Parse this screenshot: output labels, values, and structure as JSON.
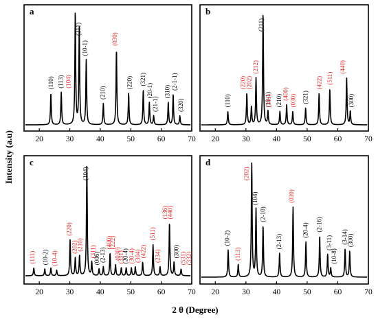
{
  "figure": {
    "ylabel": "Intensity (a.u)",
    "xlabel": "2 θ (Degree)",
    "label_colors": {
      "black": "#000000",
      "red": "#e32624"
    }
  },
  "chart_data": [
    {
      "type": "line",
      "panel": "a",
      "xlim": [
        15,
        70
      ],
      "xticks": [
        20,
        30,
        40,
        50,
        60,
        70
      ],
      "peaks": [
        [
          23.8,
          0.28
        ],
        [
          27.2,
          0.29
        ],
        [
          31.8,
          1.0
        ],
        [
          33.1,
          0.86
        ],
        [
          35.4,
          0.58
        ],
        [
          41.0,
          0.19
        ],
        [
          45.3,
          0.67
        ],
        [
          49.3,
          0.28
        ],
        [
          54.1,
          0.31
        ],
        [
          56.1,
          0.2
        ],
        [
          57.5,
          0.08
        ],
        [
          62.3,
          0.2
        ],
        [
          63.9,
          0.27
        ],
        [
          66.1,
          0.08
        ]
      ],
      "annotations": [
        {
          "text": "(110)",
          "x": 23.8,
          "color": "black"
        },
        {
          "text": "(113)",
          "x": 27.1,
          "color": "black"
        },
        {
          "text": "(104)",
          "x": 29.5,
          "color": "red"
        },
        {
          "text": "(211)",
          "x": 32.8,
          "color": "black"
        },
        {
          "text": "(10-1)",
          "x": 35.0,
          "color": "black"
        },
        {
          "text": "(210)",
          "x": 40.8,
          "color": "black"
        },
        {
          "text": "(030)",
          "x": 44.8,
          "color": "red"
        },
        {
          "text": "(220)",
          "x": 49.6,
          "color": "black"
        },
        {
          "text": "(321)",
          "x": 54.0,
          "color": "black"
        },
        {
          "text": "(20-1)",
          "x": 56.2,
          "color": "black"
        },
        {
          "text": "(21-1)",
          "x": 58.0,
          "color": "black"
        },
        {
          "text": "(310)",
          "x": 62.0,
          "color": "black"
        },
        {
          "text": "(2-1-1)",
          "x": 64.4,
          "color": "black"
        },
        {
          "text": "(320)",
          "x": 66.4,
          "color": "black"
        }
      ]
    },
    {
      "type": "line",
      "panel": "b",
      "xlim": [
        15,
        70
      ],
      "xticks": [
        20,
        30,
        40,
        50,
        60,
        70
      ],
      "peaks": [
        [
          24.1,
          0.12
        ],
        [
          30.3,
          0.28
        ],
        [
          31.8,
          0.16
        ],
        [
          33.3,
          0.42
        ],
        [
          35.6,
          1.0
        ],
        [
          37.2,
          0.12
        ],
        [
          41.1,
          0.12
        ],
        [
          43.3,
          0.18
        ],
        [
          45.3,
          0.12
        ],
        [
          49.5,
          0.15
        ],
        [
          53.9,
          0.28
        ],
        [
          57.4,
          0.32
        ],
        [
          62.9,
          0.42
        ],
        [
          64.1,
          0.12
        ]
      ],
      "annotations": [
        {
          "text": "(110)",
          "x": 24.0,
          "color": "black"
        },
        {
          "text": "(220)",
          "x": 29.0,
          "color": "red"
        },
        {
          "text": "(202)",
          "x": 31.0,
          "color": "red"
        },
        {
          "text": "(212)",
          "x": 33.2,
          "color": "red"
        },
        {
          "text": "(211)",
          "x": 35.0,
          "color": "black"
        },
        {
          "text": "(10-1)",
          "x": 37.2,
          "color": "black"
        },
        {
          "text": "(311)",
          "x": 37.5,
          "color": "red"
        },
        {
          "text": "(210)",
          "x": 40.8,
          "color": "black"
        },
        {
          "text": "(400)",
          "x": 43.0,
          "color": "red"
        },
        {
          "text": "(030)",
          "x": 45.4,
          "color": "red"
        },
        {
          "text": "(321)",
          "x": 49.5,
          "color": "black"
        },
        {
          "text": "(422)",
          "x": 54.0,
          "color": "red"
        },
        {
          "text": "(511)",
          "x": 57.4,
          "color": "red"
        },
        {
          "text": "(440)",
          "x": 61.6,
          "color": "red"
        },
        {
          "text": "(300)",
          "x": 64.4,
          "color": "black"
        }
      ]
    },
    {
      "type": "line",
      "panel": "c",
      "xlim": [
        15,
        70
      ],
      "xticks": [
        20,
        30,
        40,
        50,
        60,
        70
      ],
      "peaks": [
        [
          18.2,
          0.07
        ],
        [
          21.8,
          0.06
        ],
        [
          23.8,
          0.07
        ],
        [
          25.7,
          0.05
        ],
        [
          30.1,
          0.32
        ],
        [
          31.8,
          0.16
        ],
        [
          33.2,
          0.18
        ],
        [
          35.6,
          1.0
        ],
        [
          37.2,
          0.12
        ],
        [
          39.6,
          0.06
        ],
        [
          41.0,
          0.08
        ],
        [
          43.2,
          0.2
        ],
        [
          45.0,
          0.1
        ],
        [
          46.9,
          0.07
        ],
        [
          48.5,
          0.07
        ],
        [
          50.2,
          0.07
        ],
        [
          51.5,
          0.08
        ],
        [
          53.9,
          0.12
        ],
        [
          57.3,
          0.28
        ],
        [
          59.6,
          0.08
        ],
        [
          62.7,
          0.47
        ],
        [
          64.2,
          0.12
        ],
        [
          66.5,
          0.06
        ]
      ],
      "annotations": [
        {
          "text": "(111)",
          "x": 17.7,
          "color": "red"
        },
        {
          "text": "(10-2)",
          "x": 22.0,
          "color": "black"
        },
        {
          "text": "(10-4)",
          "x": 25.0,
          "color": "red"
        },
        {
          "text": "(220)",
          "x": 29.8,
          "color": "red"
        },
        {
          "text": "(202)",
          "x": 31.6,
          "color": "red"
        },
        {
          "text": "(210)",
          "x": 33.4,
          "color": "red"
        },
        {
          "text": "(104)",
          "x": 35.2,
          "color": "black"
        },
        {
          "text": "(311)",
          "x": 37.6,
          "color": "red"
        },
        {
          "text": "(006)",
          "x": 38.9,
          "color": "black"
        },
        {
          "text": "(2-13)",
          "x": 40.8,
          "color": "black"
        },
        {
          "text": "(400)",
          "x": 42.8,
          "color": "red"
        },
        {
          "text": "(222)",
          "x": 44.1,
          "color": "red"
        },
        {
          "text": "(030)",
          "x": 45.6,
          "color": "red"
        },
        {
          "text": "(331)",
          "x": 46.8,
          "color": "red"
        },
        {
          "text": "(20-4)",
          "x": 48.3,
          "color": "black"
        },
        {
          "text": "(30-4)",
          "x": 50.3,
          "color": "red"
        },
        {
          "text": "(304)",
          "x": 52.3,
          "color": "red"
        },
        {
          "text": "(422)",
          "x": 54.1,
          "color": "red"
        },
        {
          "text": "(511)",
          "x": 57.1,
          "color": "red"
        },
        {
          "text": "(234)",
          "x": 58.8,
          "color": "red"
        },
        {
          "text": "(136)",
          "x": 61.2,
          "color": "red"
        },
        {
          "text": "(440)",
          "x": 62.9,
          "color": "red"
        },
        {
          "text": "(300)",
          "x": 64.9,
          "color": "black"
        },
        {
          "text": "(531)",
          "x": 67.2,
          "color": "red"
        },
        {
          "text": "(332)",
          "x": 70.0,
          "color": "red"
        }
      ]
    },
    {
      "type": "line",
      "panel": "d",
      "xlim": [
        15,
        70
      ],
      "xticks": [
        20,
        30,
        40,
        50,
        60,
        70
      ],
      "peaks": [
        [
          24.2,
          0.24
        ],
        [
          27.5,
          0.11
        ],
        [
          31.9,
          1.0
        ],
        [
          33.3,
          0.6
        ],
        [
          35.6,
          0.45
        ],
        [
          41.0,
          0.21
        ],
        [
          45.4,
          0.62
        ],
        [
          49.6,
          0.31
        ],
        [
          54.1,
          0.36
        ],
        [
          56.7,
          0.2
        ],
        [
          57.7,
          0.08
        ],
        [
          62.4,
          0.25
        ],
        [
          63.9,
          0.23
        ]
      ],
      "annotations": [
        {
          "text": "(10-2)",
          "x": 23.9,
          "color": "black"
        },
        {
          "text": "(113)",
          "x": 27.4,
          "color": "red"
        },
        {
          "text": "(202)",
          "x": 30.1,
          "color": "red"
        },
        {
          "text": "(104)",
          "x": 33.0,
          "color": "black"
        },
        {
          "text": "(2-10)",
          "x": 35.5,
          "color": "black"
        },
        {
          "text": "(2-13)",
          "x": 40.8,
          "color": "black"
        },
        {
          "text": "(030)",
          "x": 44.9,
          "color": "red"
        },
        {
          "text": "(20-4)",
          "x": 49.5,
          "color": "black"
        },
        {
          "text": "(2-16)",
          "x": 54.0,
          "color": "black"
        },
        {
          "text": "(3-11)",
          "x": 57.2,
          "color": "black"
        },
        {
          "text": "(10-8)",
          "x": 58.8,
          "color": "black"
        },
        {
          "text": "(3-14)",
          "x": 62.3,
          "color": "black"
        },
        {
          "text": "(300)",
          "x": 64.2,
          "color": "black"
        }
      ]
    }
  ]
}
